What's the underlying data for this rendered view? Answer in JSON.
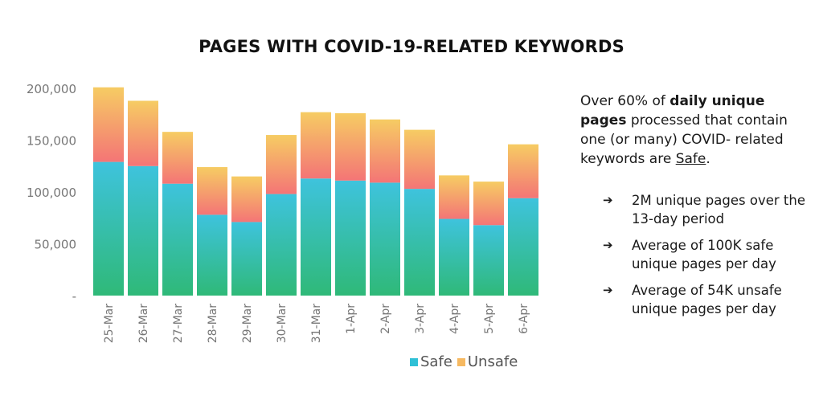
{
  "chart_data": {
    "type": "bar",
    "stacked": true,
    "title": "PAGES WITH COVID-19-RELATED KEYWORDS",
    "categories": [
      "25-Mar",
      "26-Mar",
      "27-Mar",
      "28-Mar",
      "29-Mar",
      "30-Mar",
      "31-Mar",
      "1-Apr",
      "2-Apr",
      "3-Apr",
      "4-Apr",
      "5-Apr",
      "6-Apr"
    ],
    "series": [
      {
        "name": "Safe",
        "values": [
          129000,
          125000,
          108000,
          78000,
          71000,
          98000,
          113000,
          111000,
          109000,
          103000,
          74000,
          68000,
          94000
        ]
      },
      {
        "name": "Unsafe",
        "values": [
          72000,
          63000,
          50000,
          46000,
          44000,
          57000,
          64000,
          65000,
          61000,
          57000,
          42000,
          42000,
          52000
        ]
      }
    ],
    "ylim": [
      0,
      200000
    ],
    "yticks": [
      {
        "value": 0,
        "label": "-"
      },
      {
        "value": 50000,
        "label": "50,000"
      },
      {
        "value": 100000,
        "label": "100,000"
      },
      {
        "value": 150000,
        "label": "150,000"
      },
      {
        "value": 200000,
        "label": "200,000"
      }
    ],
    "grid": false,
    "legend_position": "bottom-right",
    "colors": {
      "safe_top": "#3ec3dd",
      "safe_bottom": "#2fb978",
      "unsafe_top": "#f6cc63",
      "unsafe_bottom": "#f47576",
      "legend_safe": "#2fc0d6",
      "legend_unsafe": "#f6b961"
    }
  },
  "side_text": {
    "p1": "Over 60% of ",
    "p_bold": "daily unique pages",
    "p2": " processed that contain one (or many) COVID- related keywords are ",
    "p_underline": "Safe",
    "p3": ".",
    "arrow_glyph": "➔",
    "bullets": [
      "2M unique pages over the 13-day period",
      "Average of 100K safe unique pages per day",
      "Average of 54K unsafe unique pages per day"
    ]
  }
}
